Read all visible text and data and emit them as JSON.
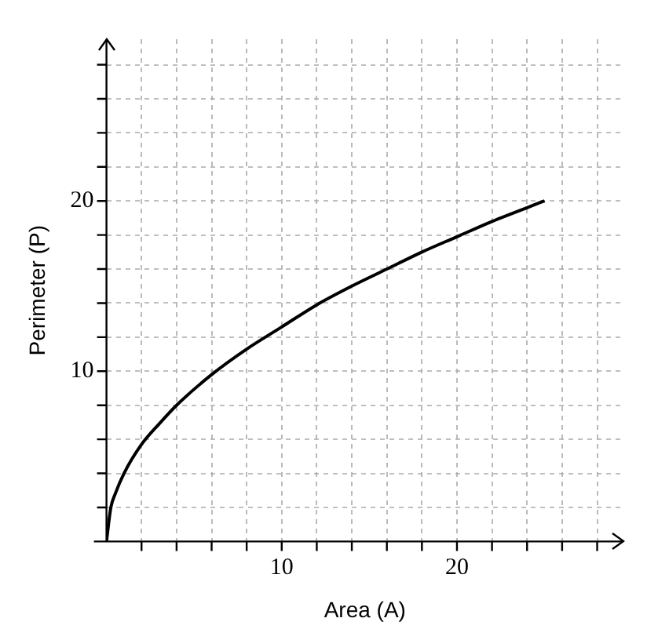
{
  "chart_data": {
    "type": "line",
    "xlabel": "Area (A)",
    "ylabel": "Perimeter (P)",
    "x": [
      0,
      0.25,
      0.5,
      1,
      2,
      3,
      4,
      6,
      8,
      10,
      12,
      14,
      16,
      18,
      20,
      22,
      25
    ],
    "series": [
      {
        "color": "#000000",
        "values": [
          0,
          2,
          2.8,
          4,
          5.7,
          6.9,
          8,
          9.8,
          11.3,
          12.6,
          13.9,
          15,
          16,
          17,
          17.9,
          18.8,
          20
        ]
      }
    ],
    "xlim": [
      0,
      29.5
    ],
    "ylim": [
      0,
      29.5
    ],
    "xticks": [
      {
        "value": 2,
        "label": null
      },
      {
        "value": 4,
        "label": null
      },
      {
        "value": 6,
        "label": null
      },
      {
        "value": 8,
        "label": null
      },
      10,
      {
        "value": 12,
        "label": null
      },
      {
        "value": 14,
        "label": null
      },
      {
        "value": 16,
        "label": null
      },
      {
        "value": 18,
        "label": null
      },
      20,
      {
        "value": 22,
        "label": null
      },
      {
        "value": 24,
        "label": null
      },
      {
        "value": 26,
        "label": null
      },
      {
        "value": 28,
        "label": null
      }
    ],
    "yticks": [
      {
        "value": 2,
        "label": null
      },
      {
        "value": 4,
        "label": null
      },
      {
        "value": 6,
        "label": null
      },
      {
        "value": 8,
        "label": null
      },
      10,
      {
        "value": 12,
        "label": null
      },
      {
        "value": 14,
        "label": null
      },
      {
        "value": 16,
        "label": null
      },
      {
        "value": 18,
        "label": null
      },
      20,
      {
        "value": 22,
        "label": null
      },
      {
        "value": 24,
        "label": null
      },
      {
        "value": 26,
        "label": null
      },
      {
        "value": 28,
        "label": null
      }
    ],
    "grid": true,
    "marker": "none",
    "line_style": "solid"
  }
}
